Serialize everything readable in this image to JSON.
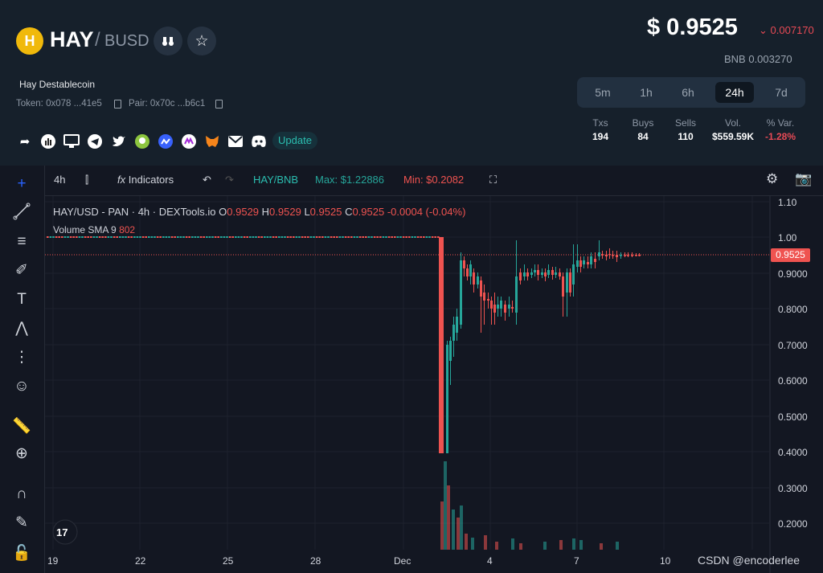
{
  "header": {
    "symbol": "HAY",
    "separator": "/",
    "quote": "BUSD",
    "token_name": "Hay Destablecoin",
    "token_addr": "Token: 0x078 ...41e5",
    "pair_addr": "Pair: 0x70c ...b6c1",
    "update_label": "Update",
    "price": "$ 0.9525",
    "price_change": "0.007170",
    "bnb_price": "BNB  0.003270",
    "logo_glyph": "H"
  },
  "timeframes": [
    "5m",
    "1h",
    "6h",
    "24h",
    "7d"
  ],
  "stats": {
    "headers": [
      "Txs",
      "Buys",
      "Sells",
      "Vol.",
      "% Var."
    ],
    "values": [
      "194",
      "84",
      "110",
      "$559.59K",
      "-1.28%"
    ]
  },
  "toolbar": {
    "interval": "4h",
    "indicators": "Indicators",
    "pair": "HAY/BNB",
    "max": "Max: $1.22886",
    "min": "Min: $0.2082"
  },
  "legend": {
    "title": "HAY/USD - PAN · 4h · DEXTools.io",
    "o": "O",
    "o_val": "0.9529",
    "h": "H",
    "h_val": "0.9529",
    "l": "L",
    "l_val": "0.9525",
    "c": "C",
    "c_val": "0.9525",
    "chg": "-0.0004 (-0.04%)",
    "volume": "Volume SMA 9",
    "volume_val": "802"
  },
  "chart_data": {
    "type": "candlestick",
    "y_ticks": [
      "1.10",
      "1.00",
      "0.9000",
      "0.8000",
      "0.7000",
      "0.6000",
      "0.5000",
      "0.4000",
      "0.3000",
      "0.2000"
    ],
    "x_ticks": [
      "19",
      "22",
      "25",
      "28",
      "Dec",
      "4",
      "7",
      "10"
    ],
    "current_price": "0.9525",
    "ylim": [
      0.15,
      1.13
    ]
  },
  "watermark": "CSDN @encoderlee",
  "colors": {
    "up": "#26a69a",
    "down": "#ef5350",
    "accent": "#2bbfb1"
  }
}
